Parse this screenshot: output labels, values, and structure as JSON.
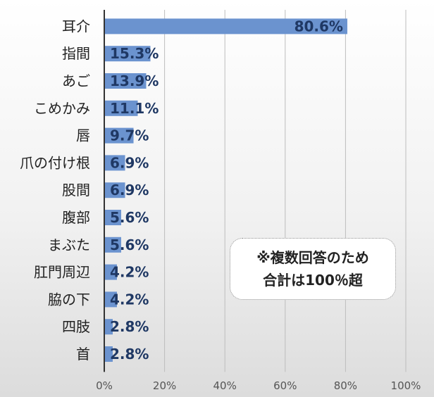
{
  "chart_data": {
    "type": "bar",
    "orientation": "horizontal",
    "categories": [
      "耳介",
      "指間",
      "あご",
      "こめかみ",
      "唇",
      "爪の付け根",
      "股間",
      "腹部",
      "まぶた",
      "肛門周辺",
      "脇の下",
      "四肢",
      "首"
    ],
    "values": [
      80.6,
      15.3,
      13.9,
      11.1,
      9.7,
      6.9,
      6.9,
      5.6,
      5.6,
      4.2,
      4.2,
      2.8,
      2.8
    ],
    "value_labels": [
      "80.6%",
      "15.3%",
      "13.9%",
      "11.1%",
      "9.7%",
      "6.9%",
      "6.9%",
      "5.6%",
      "5.6%",
      "4.2%",
      "4.2%",
      "2.8%",
      "2.8%"
    ],
    "xlim": [
      0,
      100
    ],
    "x_ticks": [
      "0%",
      "20%",
      "40%",
      "60%",
      "80%",
      "100%"
    ],
    "grid": true,
    "bar_color": "#6b93cf",
    "label_color": "#1f3864"
  },
  "note": {
    "line1": "※複数回答のため",
    "line2": "合計は100％超"
  }
}
